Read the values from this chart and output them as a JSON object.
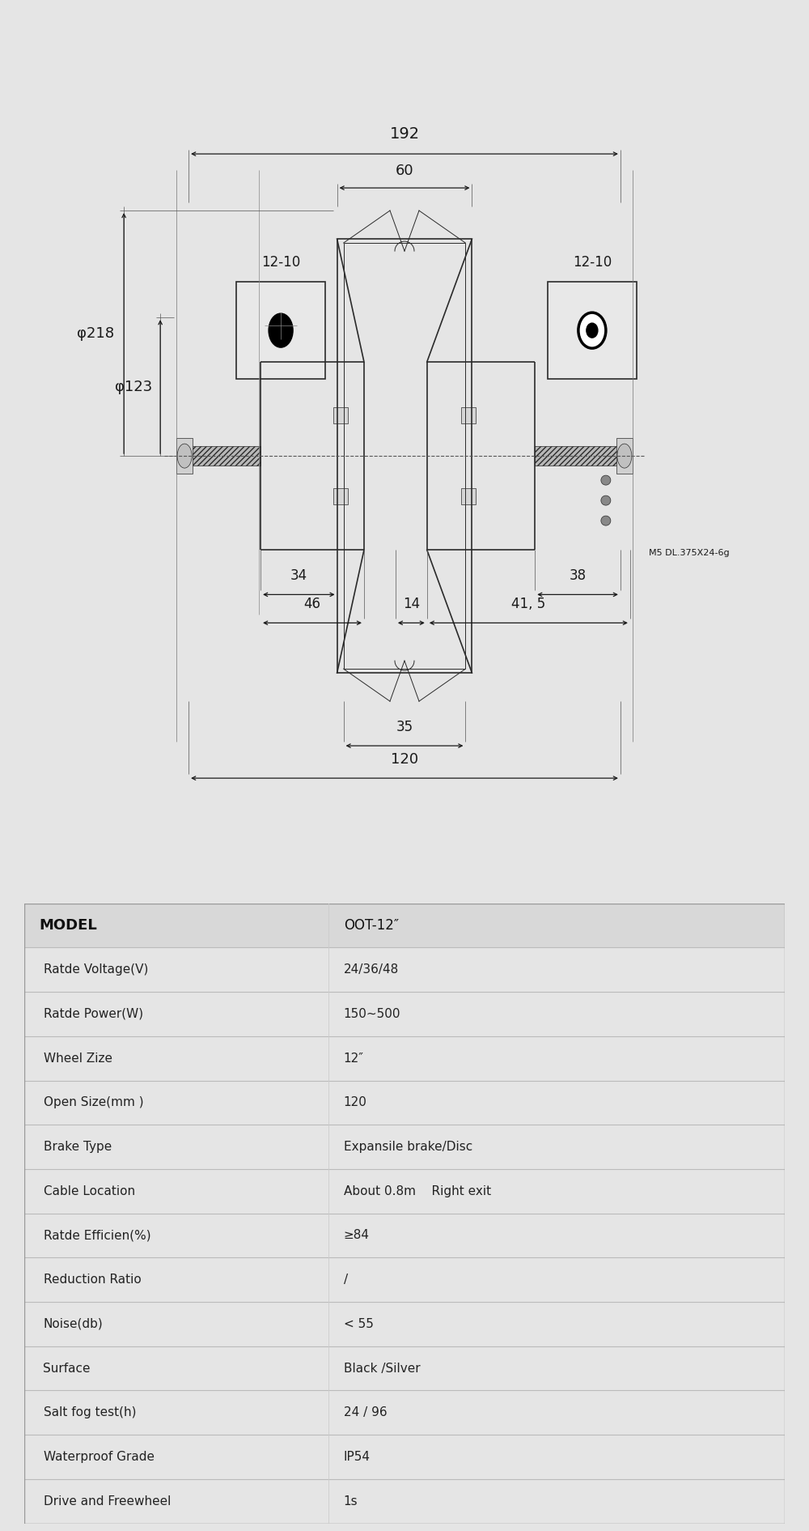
{
  "bg_color": "#e5e5e5",
  "table_bg": "#ffffff",
  "line_color": "#2a2a2a",
  "dim_color": "#1a1a1a",
  "table_header_bg": "#d8d8d8",
  "table_row_bg": "#f5f5f5",
  "specs": [
    [
      "MODEL",
      "OOT-12″",
      true
    ],
    [
      "Ratde Voltage(V)",
      "24/36/48",
      false
    ],
    [
      "Ratde Power(W)",
      "150~500",
      false
    ],
    [
      "Wheel Zize",
      "12″",
      false
    ],
    [
      "Open Size(mm )",
      "120",
      false
    ],
    [
      "Brake Type",
      "Expansile brake/Disc",
      false
    ],
    [
      "Cable Location",
      "About 0.8m    Right exit",
      false
    ],
    [
      "Ratde Efficien(%)",
      "≥84",
      false
    ],
    [
      "Reduction Ratio",
      "/",
      false
    ],
    [
      "Noise(db)",
      "< 55",
      false
    ],
    [
      "Surface",
      "Black /Silver",
      false
    ],
    [
      "Salt fog test(h)",
      "24 / 96",
      false
    ],
    [
      "Waterproof Grade",
      "IP54",
      false
    ],
    [
      "Drive and Freewheel",
      "1s",
      false
    ]
  ],
  "dim_192": "192",
  "dim_60": "60",
  "dim_123": "φ123",
  "dim_218": "φ218",
  "dim_12_10_left": "12-10",
  "dim_12_10_right": "12-10",
  "dim_34": "34",
  "dim_46": "46",
  "dim_38": "38",
  "dim_14": "14",
  "dim_41_5": "41, 5",
  "dim_35": "35",
  "dim_120": "120",
  "annotation_right": "M5 DL.375X24-6g"
}
